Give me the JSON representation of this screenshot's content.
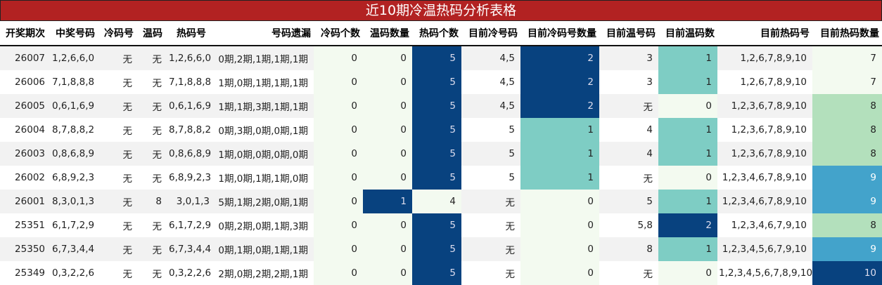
{
  "title": "近10期冷温热码分析表格",
  "headers": [
    "开奖期次",
    "中奖号码",
    "冷码号",
    "温码",
    "热码号",
    "号码遗漏",
    "冷码个数",
    "温码数量",
    "热码个数",
    "目前冷号码",
    "目前冷码号数量",
    "目前温号码",
    "目前温码数",
    "目前热码号",
    "目前热码数量"
  ],
  "colors": {
    "title_bg": "#b22222",
    "navy": "#08427f",
    "teal": "#7ecdc4",
    "pale": "#f3faf0",
    "light_green": "#b3e0bc",
    "blue": "#43a3cb"
  },
  "rows": [
    [
      "26007",
      "1,2,6,6,0",
      "无",
      "无",
      "1,2,6,6,0",
      "0期,2期,1期,1期,1期",
      "0",
      "0",
      "5",
      "4,5",
      "2",
      "3",
      "1",
      "1,2,6,7,8,9,10",
      "7"
    ],
    [
      "26006",
      "7,1,8,8,8",
      "无",
      "无",
      "7,1,8,8,8",
      "1期,0期,1期,1期,1期",
      "0",
      "0",
      "5",
      "4,5",
      "2",
      "3",
      "1",
      "1,2,6,7,8,9,10",
      "7"
    ],
    [
      "26005",
      "0,6,1,6,9",
      "无",
      "无",
      "0,6,1,6,9",
      "1期,1期,3期,1期,1期",
      "0",
      "0",
      "5",
      "4,5",
      "2",
      "无",
      "0",
      "1,2,3,6,7,8,9,10",
      "8"
    ],
    [
      "26004",
      "8,7,8,8,2",
      "无",
      "无",
      "8,7,8,8,2",
      "0期,3期,0期,0期,1期",
      "0",
      "0",
      "5",
      "5",
      "1",
      "4",
      "1",
      "1,2,3,6,7,8,9,10",
      "8"
    ],
    [
      "26003",
      "0,8,6,8,9",
      "无",
      "无",
      "0,8,6,8,9",
      "1期,0期,0期,0期,0期",
      "0",
      "0",
      "5",
      "5",
      "1",
      "4",
      "1",
      "1,2,3,6,7,8,9,10",
      "8"
    ],
    [
      "26002",
      "6,8,9,2,3",
      "无",
      "无",
      "6,8,9,2,3",
      "1期,0期,1期,1期,0期",
      "0",
      "0",
      "5",
      "5",
      "1",
      "无",
      "0",
      "1,2,3,4,6,7,8,9,10",
      "9"
    ],
    [
      "26001",
      "8,3,0,1,3",
      "无",
      "8",
      "3,0,1,3",
      "5期,1期,2期,0期,1期",
      "0",
      "1",
      "4",
      "无",
      "0",
      "5",
      "1",
      "1,2,3,4,6,7,8,9,10",
      "9"
    ],
    [
      "25351",
      "6,1,7,2,9",
      "无",
      "无",
      "6,1,7,2,9",
      "0期,2期,0期,1期,3期",
      "0",
      "0",
      "5",
      "无",
      "0",
      "5,8",
      "2",
      "1,2,3,4,6,7,9,10",
      "8"
    ],
    [
      "25350",
      "6,7,3,4,4",
      "无",
      "无",
      "6,7,3,4,4",
      "0期,1期,0期,1期,1期",
      "0",
      "0",
      "5",
      "无",
      "0",
      "8",
      "1",
      "1,2,3,4,5,6,7,9,10",
      "9"
    ],
    [
      "25349",
      "0,3,2,2,6",
      "无",
      "无",
      "0,3,2,2,6",
      "2期,0期,2期,2期,1期",
      "0",
      "0",
      "5",
      "无",
      "0",
      "无",
      "0",
      "1,2,3,4,5,6,7,8,9,10",
      "10"
    ]
  ]
}
